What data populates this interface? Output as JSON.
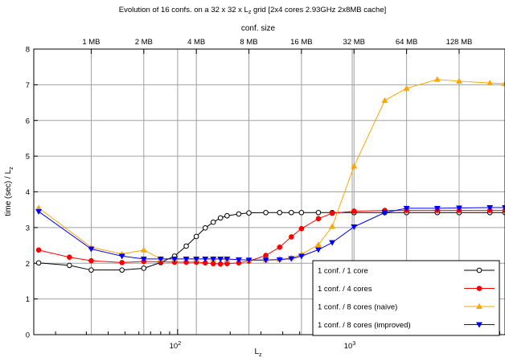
{
  "chart_data": {
    "type": "line",
    "title_main": "Evolution of 16 confs. on a 32 x 32 x L",
    "title_sub": "z",
    "title_rest": "  grid  [2x4 cores 2.93GHz 2x8MB cache]",
    "x2label": "conf. size",
    "xlabel_main": "L",
    "xlabel_sub": "z",
    "ylabel_main": "time (sec) / L",
    "ylabel_sub": "z",
    "x_scale": "log10",
    "xlim": [
      15,
      7500
    ],
    "ylim": [
      0,
      8
    ],
    "yticks": [
      0,
      1,
      2,
      3,
      4,
      5,
      6,
      7,
      8
    ],
    "xticks_major": [
      {
        "value": 100,
        "base": "10",
        "exp": "2"
      },
      {
        "value": 1000,
        "base": "10",
        "exp": "3"
      }
    ],
    "xticks_minor": [
      20,
      30,
      40,
      50,
      60,
      70,
      80,
      90,
      200,
      300,
      400,
      500,
      600,
      700,
      800,
      900,
      2000,
      3000,
      4000,
      5000,
      6000,
      7000
    ],
    "x2ticks": [
      {
        "label": "1 MB",
        "x": 32
      },
      {
        "label": "2 MB",
        "x": 64
      },
      {
        "label": "4 MB",
        "x": 128
      },
      {
        "label": "8 MB",
        "x": 256
      },
      {
        "label": "16 MB",
        "x": 512
      },
      {
        "label": "32 MB",
        "x": 1024
      },
      {
        "label": "64 MB",
        "x": 2048
      },
      {
        "label": "128 MB",
        "x": 4096
      }
    ],
    "grid": true,
    "legend_position": "bottom-right",
    "series": [
      {
        "name": "1 conf. / 1 core",
        "color": "#000000",
        "marker": "circle-open",
        "points": [
          [
            16,
            2.01
          ],
          [
            24,
            1.94
          ],
          [
            32,
            1.81
          ],
          [
            48,
            1.81
          ],
          [
            64,
            1.86
          ],
          [
            80,
            2.02
          ],
          [
            96,
            2.2
          ],
          [
            112,
            2.48
          ],
          [
            128,
            2.75
          ],
          [
            144,
            2.99
          ],
          [
            160,
            3.15
          ],
          [
            176,
            3.27
          ],
          [
            192,
            3.33
          ],
          [
            224,
            3.38
          ],
          [
            256,
            3.41
          ],
          [
            320,
            3.42
          ],
          [
            384,
            3.42
          ],
          [
            448,
            3.42
          ],
          [
            512,
            3.42
          ],
          [
            640,
            3.42
          ],
          [
            768,
            3.42
          ],
          [
            1024,
            3.42
          ],
          [
            1536,
            3.42
          ],
          [
            2048,
            3.42
          ],
          [
            3072,
            3.42
          ],
          [
            4096,
            3.42
          ],
          [
            6144,
            3.42
          ],
          [
            7500,
            3.42
          ]
        ]
      },
      {
        "name": "1 conf. / 4 cores",
        "color": "#ff0000",
        "marker": "circle-filled",
        "points": [
          [
            16,
            2.37
          ],
          [
            24,
            2.17
          ],
          [
            32,
            2.07
          ],
          [
            48,
            2.02
          ],
          [
            64,
            2.05
          ],
          [
            80,
            2.04
          ],
          [
            96,
            2.03
          ],
          [
            112,
            2.03
          ],
          [
            128,
            2.03
          ],
          [
            144,
            2.01
          ],
          [
            160,
            1.99
          ],
          [
            176,
            1.98
          ],
          [
            192,
            1.99
          ],
          [
            224,
            2.01
          ],
          [
            256,
            2.06
          ],
          [
            320,
            2.22
          ],
          [
            384,
            2.45
          ],
          [
            448,
            2.74
          ],
          [
            512,
            2.97
          ],
          [
            640,
            3.25
          ],
          [
            768,
            3.4
          ],
          [
            1024,
            3.46
          ],
          [
            1536,
            3.48
          ],
          [
            2048,
            3.48
          ],
          [
            3072,
            3.48
          ],
          [
            4096,
            3.48
          ],
          [
            6144,
            3.48
          ],
          [
            7500,
            3.48
          ]
        ]
      },
      {
        "name": "1 conf. / 8 cores (naive)",
        "color": "#ffa500",
        "marker": "triangle-up",
        "points": [
          [
            16,
            3.55
          ],
          [
            32,
            2.45
          ],
          [
            48,
            2.26
          ],
          [
            64,
            2.37
          ],
          [
            80,
            2.12
          ],
          [
            96,
            2.12
          ],
          [
            128,
            2.12
          ],
          [
            160,
            2.12
          ],
          [
            192,
            2.1
          ],
          [
            256,
            2.09
          ],
          [
            320,
            2.09
          ],
          [
            384,
            2.12
          ],
          [
            448,
            2.15
          ],
          [
            512,
            2.25
          ],
          [
            640,
            2.52
          ],
          [
            768,
            3.03
          ],
          [
            1024,
            4.72
          ],
          [
            1536,
            6.56
          ],
          [
            2048,
            6.9
          ],
          [
            3072,
            7.15
          ],
          [
            4096,
            7.1
          ],
          [
            6144,
            7.05
          ],
          [
            7500,
            7.03
          ]
        ]
      },
      {
        "name": "1 conf. / 8 cores (improved)",
        "color": "#0000ff",
        "marker": "triangle-down",
        "points": [
          [
            16,
            3.45
          ],
          [
            32,
            2.4
          ],
          [
            48,
            2.2
          ],
          [
            64,
            2.12
          ],
          [
            80,
            2.12
          ],
          [
            96,
            2.12
          ],
          [
            112,
            2.12
          ],
          [
            128,
            2.12
          ],
          [
            144,
            2.12
          ],
          [
            160,
            2.12
          ],
          [
            176,
            2.12
          ],
          [
            192,
            2.12
          ],
          [
            224,
            2.1
          ],
          [
            256,
            2.09
          ],
          [
            320,
            2.09
          ],
          [
            384,
            2.1
          ],
          [
            448,
            2.13
          ],
          [
            512,
            2.2
          ],
          [
            640,
            2.38
          ],
          [
            768,
            2.58
          ],
          [
            1024,
            3.02
          ],
          [
            1536,
            3.42
          ],
          [
            2048,
            3.54
          ],
          [
            3072,
            3.54
          ],
          [
            4096,
            3.55
          ],
          [
            6144,
            3.56
          ],
          [
            7500,
            3.56
          ]
        ]
      }
    ]
  }
}
